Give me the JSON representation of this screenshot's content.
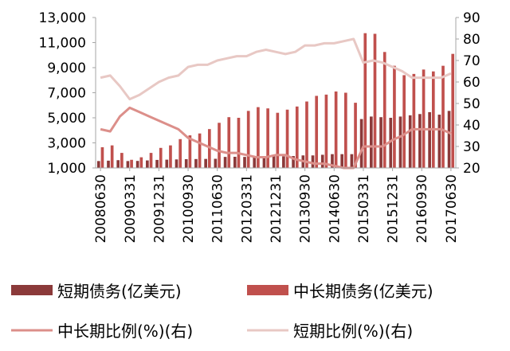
{
  "chart_data": {
    "type": "bar+line",
    "title": "",
    "x": [
      "20080630",
      "20080930",
      "20081231",
      "20090331",
      "20090630",
      "20090930",
      "20091231",
      "20100331",
      "20100630",
      "20100930",
      "20101231",
      "20110331",
      "20110630",
      "20110930",
      "20111231",
      "20120331",
      "20120630",
      "20120930",
      "20121231",
      "20130331",
      "20130630",
      "20130930",
      "20131231",
      "20140331",
      "20140630",
      "20140930",
      "20141231",
      "20150331",
      "20150630",
      "20150930",
      "20151231",
      "20160331",
      "20160630",
      "20160930",
      "20161231",
      "20170331",
      "20170630"
    ],
    "x_tick_labels": [
      "20080630",
      "20090331",
      "20091231",
      "20100930",
      "20110630",
      "20120331",
      "20121231",
      "20130930",
      "20140630",
      "20150331",
      "20151231",
      "20160930",
      "20170630"
    ],
    "y_left": {
      "ticks": [
        "1,000",
        "3,000",
        "5,000",
        "7,000",
        "9,000",
        "11,000",
        "13,000"
      ],
      "range": [
        1000,
        13000
      ]
    },
    "y_right": {
      "ticks": [
        "20",
        "30",
        "40",
        "50",
        "60",
        "70",
        "80",
        "90"
      ],
      "range": [
        20,
        90
      ]
    },
    "series": [
      {
        "name": "短期债务(亿美元)",
        "kind": "bar",
        "axis": "left",
        "color": "#8b3a3a",
        "values": [
          1550,
          1580,
          1620,
          1550,
          1560,
          1600,
          1640,
          1660,
          1680,
          1700,
          1710,
          1720,
          1730,
          1880,
          1890,
          1880,
          1900,
          1900,
          1920,
          1930,
          1950,
          2000,
          2000,
          2050,
          2100,
          2100,
          2100,
          4900,
          5100,
          5050,
          5000,
          5100,
          5200,
          5300,
          5450,
          5250,
          5550
        ]
      },
      {
        "name": "中长期债务(亿美元)",
        "kind": "bar",
        "axis": "left",
        "color": "#c0504d",
        "values": [
          2650,
          2800,
          2200,
          1650,
          1850,
          2200,
          2600,
          2800,
          3300,
          3600,
          3750,
          4100,
          4600,
          5050,
          5000,
          5550,
          5850,
          5750,
          5400,
          5650,
          5900,
          6300,
          6750,
          6850,
          7100,
          7000,
          6200,
          11750,
          11700,
          10250,
          9150,
          8400,
          8500,
          8850,
          8700,
          9150,
          10100
        ]
      },
      {
        "name": "中长期比例(%)(右)",
        "kind": "line",
        "axis": "right",
        "color": "#dc8f8a",
        "values": [
          38,
          37,
          44,
          48,
          46,
          44,
          42,
          40,
          38,
          34,
          32,
          30,
          28,
          27,
          27,
          26,
          25,
          25,
          26,
          26,
          24,
          23,
          22,
          22,
          21,
          20,
          20,
          30,
          30,
          30,
          33,
          35,
          38,
          38,
          38,
          38,
          36
        ]
      },
      {
        "name": "短期比例(%)(右)",
        "kind": "line",
        "axis": "right",
        "color": "#e8c8c4",
        "values": [
          62,
          63,
          58,
          52,
          54,
          57,
          60,
          62,
          63,
          67,
          68,
          68,
          70,
          71,
          72,
          72,
          74,
          75,
          74,
          73,
          74,
          77,
          77,
          78,
          78,
          79,
          80,
          69,
          70,
          69,
          67,
          65,
          62,
          62,
          62,
          62,
          64
        ]
      }
    ],
    "legend": {
      "placement": "bottom",
      "items": [
        {
          "label": "短期债务(亿美元)",
          "symbol": "bar",
          "color": "#8b3a3a"
        },
        {
          "label": "中长期债务(亿美元)",
          "symbol": "bar",
          "color": "#c0504d"
        },
        {
          "label": "中长期比例(%)(右)",
          "symbol": "line",
          "color": "#dc8f8a"
        },
        {
          "label": "短期比例(%)(右)",
          "symbol": "line",
          "color": "#e8c8c4"
        }
      ]
    },
    "grid": false
  }
}
